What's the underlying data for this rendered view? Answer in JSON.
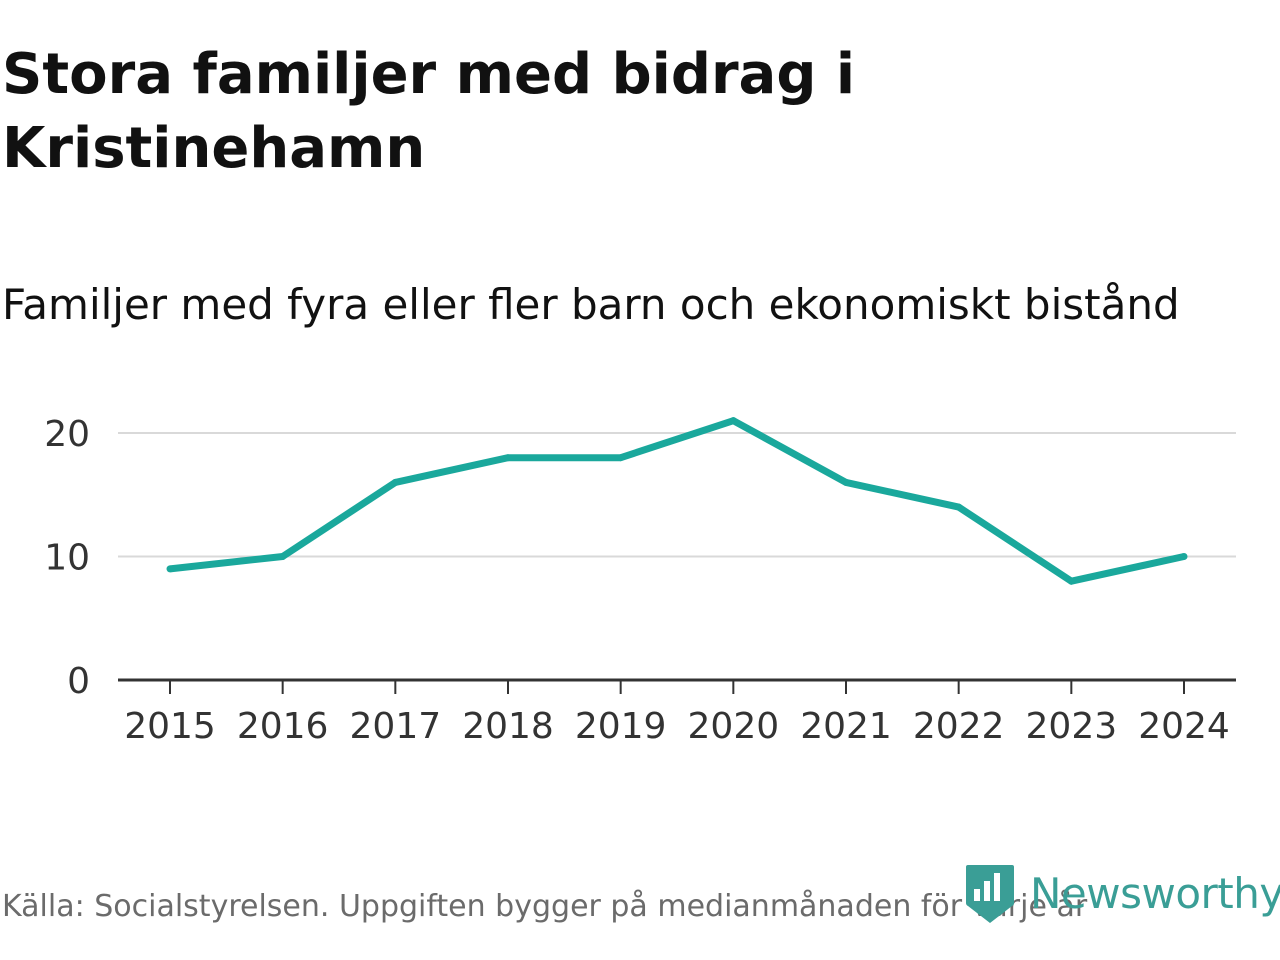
{
  "header": {
    "title": "Stora familjer med bidrag i Kristinehamn",
    "subtitle": "Familjer med fyra eller fler barn och ekonomiskt bistånd"
  },
  "footer": {
    "source": "Källa: Socialstyrelsen. Uppgiften bygger på medianmånaden för varje år",
    "brand": "Newsworthy",
    "brand_icon": "newsworthy-logo-icon"
  },
  "colors": {
    "line": "#1aa89c",
    "grid": "#d9d9d9",
    "axis": "#333333",
    "brand": "#3a9e96"
  },
  "chart_data": {
    "type": "line",
    "title": "Stora familjer med bidrag i Kristinehamn",
    "subtitle": "Familjer med fyra eller fler barn och ekonomiskt bistånd",
    "xlabel": "",
    "ylabel": "",
    "x": [
      "2015",
      "2016",
      "2017",
      "2018",
      "2019",
      "2020",
      "2021",
      "2022",
      "2023",
      "2024"
    ],
    "series": [
      {
        "name": "Familjer med fyra eller fler barn och ekonomiskt bistånd",
        "values": [
          9,
          10,
          16,
          18,
          18,
          21,
          16,
          14,
          8,
          10
        ]
      }
    ],
    "yticks": [
      0,
      10,
      20
    ],
    "ylim": [
      0,
      22
    ],
    "grid": true,
    "legend": "none"
  }
}
